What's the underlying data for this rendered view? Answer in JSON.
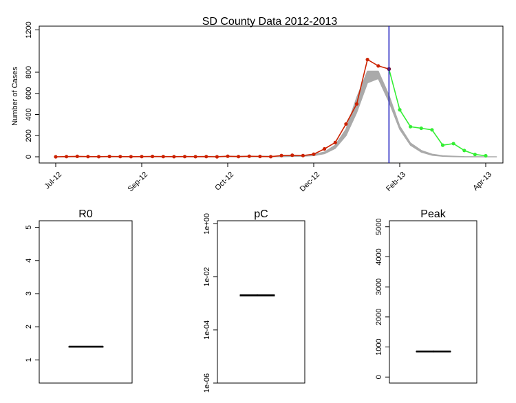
{
  "chart_data": [
    {
      "type": "line",
      "title": "SD County Data 2012-2013",
      "xlabel": "",
      "ylabel": "Number of Cases",
      "ylim": [
        -60,
        1260
      ],
      "x_ticks": [
        {
          "label": "Jul-12",
          "week": 0
        },
        {
          "label": "Sep-12",
          "week": 8
        },
        {
          "label": "Oct-12",
          "week": 16
        },
        {
          "label": "Dec-12",
          "week": 24
        },
        {
          "label": "Feb-13",
          "week": 32
        },
        {
          "label": "Apr-13",
          "week": 40
        }
      ],
      "y_ticks": [
        {
          "label": "0",
          "value": 0
        },
        {
          "label": "200",
          "value": 200
        },
        {
          "label": "400",
          "value": 400
        },
        {
          "label": "600",
          "value": 600
        },
        {
          "label": "800",
          "value": 800
        },
        {
          "label": "1200",
          "value": 1200
        }
      ],
      "vline_week": 31,
      "series": [
        {
          "color": "#cc2200",
          "values": [
            [
              0,
              0
            ],
            [
              1,
              2
            ],
            [
              2,
              4
            ],
            [
              3,
              2
            ],
            [
              4,
              1
            ],
            [
              5,
              3
            ],
            [
              6,
              2
            ],
            [
              7,
              1
            ],
            [
              8,
              2
            ],
            [
              9,
              3
            ],
            [
              10,
              2
            ],
            [
              11,
              1
            ],
            [
              12,
              2
            ],
            [
              13,
              1
            ],
            [
              14,
              2
            ],
            [
              15,
              0
            ],
            [
              16,
              5
            ],
            [
              17,
              2
            ],
            [
              18,
              5
            ],
            [
              19,
              3
            ],
            [
              20,
              1
            ],
            [
              21,
              12
            ],
            [
              22,
              15
            ],
            [
              23,
              12
            ],
            [
              24,
              25
            ],
            [
              25,
              75
            ],
            [
              26,
              135
            ],
            [
              27,
              310
            ],
            [
              28,
              500
            ],
            [
              29,
              920
            ],
            [
              30,
              860
            ],
            [
              31,
              830
            ]
          ]
        },
        {
          "color": "#33ee33",
          "values": [
            [
              31,
              830
            ],
            [
              32,
              445
            ],
            [
              33,
              285
            ],
            [
              34,
              270
            ],
            [
              35,
              255
            ],
            [
              36,
              110
            ],
            [
              37,
              125
            ],
            [
              38,
              60
            ],
            [
              39,
              22
            ],
            [
              40,
              10
            ]
          ]
        }
      ],
      "band": {
        "color": "#aaaaaa",
        "upper": [
          [
            0,
            0
          ],
          [
            21,
            5
          ],
          [
            22,
            8
          ],
          [
            23,
            12
          ],
          [
            24,
            22
          ],
          [
            25,
            45
          ],
          [
            26,
            110
          ],
          [
            27,
            260
          ],
          [
            28,
            560
          ],
          [
            29,
            810
          ],
          [
            30,
            810
          ],
          [
            31,
            580
          ],
          [
            32,
            290
          ],
          [
            33,
            130
          ],
          [
            34,
            60
          ],
          [
            35,
            25
          ],
          [
            36,
            10
          ],
          [
            37,
            5
          ],
          [
            38,
            2
          ],
          [
            40,
            0
          ],
          [
            41,
            0
          ]
        ],
        "lower": [
          [
            0,
            0
          ],
          [
            21,
            2
          ],
          [
            22,
            4
          ],
          [
            23,
            6
          ],
          [
            24,
            12
          ],
          [
            25,
            30
          ],
          [
            26,
            80
          ],
          [
            27,
            200
          ],
          [
            28,
            420
          ],
          [
            29,
            700
          ],
          [
            30,
            740
          ],
          [
            31,
            520
          ],
          [
            32,
            260
          ],
          [
            33,
            110
          ],
          [
            34,
            45
          ],
          [
            35,
            15
          ],
          [
            36,
            5
          ],
          [
            37,
            2
          ],
          [
            38,
            0
          ],
          [
            40,
            0
          ],
          [
            41,
            0
          ]
        ]
      }
    },
    {
      "type": "box",
      "title": "R0",
      "scale": "linear",
      "ylim": [
        0.3,
        5.2
      ],
      "y_ticks": [
        {
          "label": "1",
          "value": 1
        },
        {
          "label": "2",
          "value": 2
        },
        {
          "label": "3",
          "value": 3
        },
        {
          "label": "4",
          "value": 4
        },
        {
          "label": "5",
          "value": 5
        }
      ],
      "box": {
        "min": 1.39,
        "q1": 1.395,
        "median": 1.4,
        "q3": 1.405,
        "max": 1.41
      }
    },
    {
      "type": "box",
      "title": "pC",
      "scale": "log",
      "ylim": [
        1e-06,
        1.3
      ],
      "y_ticks": [
        {
          "label": "1e+00",
          "value": 1
        },
        {
          "label": "1e-02",
          "value": 0.01
        },
        {
          "label": "1e-04",
          "value": 0.0001
        },
        {
          "label": "1e-06",
          "value": 1e-06
        }
      ],
      "box": {
        "min": 0.0018,
        "q1": 0.0019,
        "median": 0.002,
        "q3": 0.0021,
        "max": 0.0022
      }
    },
    {
      "type": "box",
      "title": "Peak",
      "scale": "linear",
      "ylim": [
        -200,
        5200
      ],
      "y_ticks": [
        {
          "label": "0",
          "value": 0
        },
        {
          "label": "1000",
          "value": 1000
        },
        {
          "label": "2000",
          "value": 2000
        },
        {
          "label": "3000",
          "value": 3000
        },
        {
          "label": "4000",
          "value": 4000
        },
        {
          "label": "5000",
          "value": 5000
        }
      ],
      "box": {
        "min": 820,
        "q1": 835,
        "median": 850,
        "q3": 865,
        "max": 880
      }
    }
  ]
}
